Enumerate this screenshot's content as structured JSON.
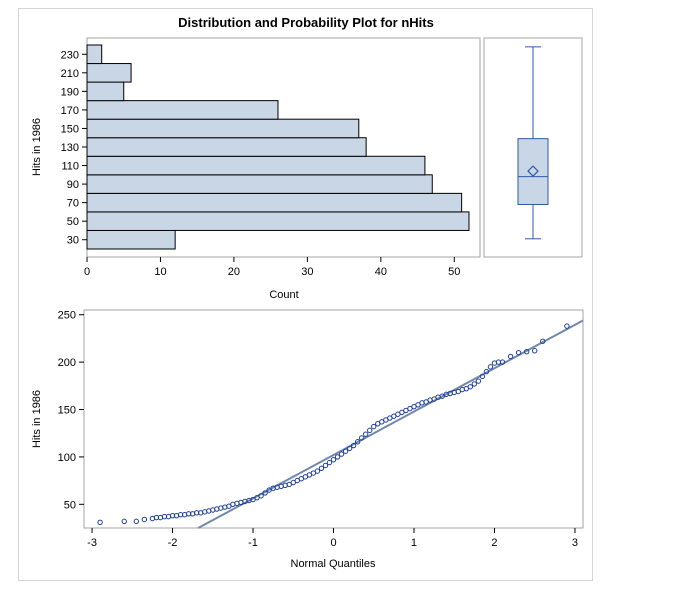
{
  "title": "Distribution and Probability Plot for nHits",
  "colors": {
    "bar_fill": "#c9d6e6",
    "bar_stroke": "#000000",
    "box_stroke": "#2f5aa8",
    "marker": "#1f3f9a",
    "ref_line": "#7088ad",
    "frame": "#a6a6a6"
  },
  "chart_data": [
    {
      "type": "bar",
      "orientation": "horizontal",
      "title": "Distribution and Probability Plot for nHits",
      "ylabel": "Hits in 1986",
      "xlabel": "Count",
      "categories": [
        "30",
        "50",
        "70",
        "90",
        "110",
        "130",
        "150",
        "170",
        "190",
        "210",
        "230"
      ],
      "values": [
        12,
        52,
        51,
        47,
        46,
        38,
        37,
        26,
        5,
        6,
        2
      ],
      "xlim": [
        0,
        53.5
      ],
      "xticks": [
        0,
        10,
        20,
        30,
        40,
        50
      ],
      "ytick_labels": [
        "30",
        "50",
        "70",
        "90",
        "110",
        "130",
        "150",
        "170",
        "190",
        "210",
        "230"
      ],
      "bin_width": 20,
      "grid": false
    },
    {
      "type": "box",
      "ylabel": "Hits in 1986",
      "min": 31,
      "q1": 68,
      "median": 98,
      "q3": 139,
      "max": 238,
      "mean": 104
    },
    {
      "type": "scatter",
      "xlabel": "Normal Quantiles",
      "ylabel": "Hits in 1986",
      "xlim": [
        -3.1,
        3.1
      ],
      "ylim": [
        25,
        255
      ],
      "xticks": [
        -3,
        -2,
        -1,
        0,
        1,
        2,
        3
      ],
      "yticks": [
        50,
        100,
        150,
        200,
        250
      ],
      "reference_line": {
        "intercept": 102,
        "slope": 45.8
      },
      "points": [
        [
          -2.9,
          31
        ],
        [
          -2.6,
          32
        ],
        [
          -2.45,
          32
        ],
        [
          -2.35,
          34
        ],
        [
          -2.25,
          35
        ],
        [
          -2.2,
          36
        ],
        [
          -2.15,
          36
        ],
        [
          -2.1,
          37
        ],
        [
          -2.05,
          37
        ],
        [
          -2.0,
          38
        ],
        [
          -1.95,
          38
        ],
        [
          -1.9,
          39
        ],
        [
          -1.85,
          39
        ],
        [
          -1.8,
          40
        ],
        [
          -1.75,
          40
        ],
        [
          -1.7,
          41
        ],
        [
          -1.65,
          41
        ],
        [
          -1.6,
          42
        ],
        [
          -1.55,
          43
        ],
        [
          -1.5,
          44
        ],
        [
          -1.45,
          45
        ],
        [
          -1.4,
          46
        ],
        [
          -1.35,
          47
        ],
        [
          -1.3,
          48
        ],
        [
          -1.25,
          50
        ],
        [
          -1.2,
          51
        ],
        [
          -1.15,
          52
        ],
        [
          -1.1,
          53
        ],
        [
          -1.05,
          54
        ],
        [
          -1.0,
          55
        ],
        [
          -0.95,
          57
        ],
        [
          -0.9,
          59
        ],
        [
          -0.85,
          62
        ],
        [
          -0.8,
          65
        ],
        [
          -0.75,
          67
        ],
        [
          -0.7,
          68
        ],
        [
          -0.65,
          69
        ],
        [
          -0.6,
          70
        ],
        [
          -0.55,
          71
        ],
        [
          -0.5,
          73
        ],
        [
          -0.45,
          75
        ],
        [
          -0.4,
          77
        ],
        [
          -0.35,
          79
        ],
        [
          -0.3,
          81
        ],
        [
          -0.25,
          83
        ],
        [
          -0.2,
          85
        ],
        [
          -0.15,
          88
        ],
        [
          -0.1,
          91
        ],
        [
          -0.05,
          94
        ],
        [
          0.0,
          97
        ],
        [
          0.05,
          100
        ],
        [
          0.1,
          103
        ],
        [
          0.15,
          106
        ],
        [
          0.2,
          109
        ],
        [
          0.25,
          112
        ],
        [
          0.3,
          116
        ],
        [
          0.35,
          120
        ],
        [
          0.4,
          124
        ],
        [
          0.45,
          128
        ],
        [
          0.5,
          132
        ],
        [
          0.55,
          135
        ],
        [
          0.6,
          137
        ],
        [
          0.65,
          139
        ],
        [
          0.7,
          141
        ],
        [
          0.75,
          143
        ],
        [
          0.8,
          145
        ],
        [
          0.85,
          147
        ],
        [
          0.9,
          149
        ],
        [
          0.95,
          151
        ],
        [
          1.0,
          153
        ],
        [
          1.05,
          155
        ],
        [
          1.1,
          157
        ],
        [
          1.15,
          158
        ],
        [
          1.2,
          160
        ],
        [
          1.25,
          161
        ],
        [
          1.3,
          163
        ],
        [
          1.35,
          164
        ],
        [
          1.4,
          166
        ],
        [
          1.45,
          167
        ],
        [
          1.5,
          168
        ],
        [
          1.55,
          169
        ],
        [
          1.6,
          171
        ],
        [
          1.65,
          172
        ],
        [
          1.7,
          174
        ],
        [
          1.75,
          177
        ],
        [
          1.8,
          180
        ],
        [
          1.85,
          185
        ],
        [
          1.9,
          190
        ],
        [
          1.95,
          195
        ],
        [
          2.0,
          199
        ],
        [
          2.05,
          200
        ],
        [
          2.1,
          200
        ],
        [
          2.2,
          206
        ],
        [
          2.3,
          210
        ],
        [
          2.4,
          211
        ],
        [
          2.5,
          212
        ],
        [
          2.6,
          222
        ],
        [
          2.9,
          238
        ]
      ]
    }
  ]
}
